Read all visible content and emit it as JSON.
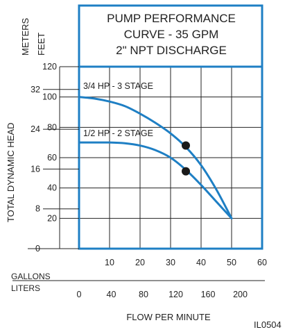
{
  "chart_data": {
    "type": "line",
    "title_lines": [
      "PUMP PERFORMANCE",
      "CURVE - 35 GPM",
      "2\" NPT DISCHARGE"
    ],
    "xlabel": "FLOW PER MINUTE",
    "x_gallons_label": "GALLONS",
    "x_liters_label": "LITERS",
    "x_gallons_ticks": [
      10,
      20,
      30,
      40,
      50,
      60
    ],
    "x_liters_ticks": [
      0,
      40,
      80,
      120,
      160,
      200
    ],
    "xlim_gallons": [
      0,
      60
    ],
    "ylabel_head": "TOTAL DYNAMIC HEAD",
    "ylabel_meters": "METERS",
    "ylabel_feet": "FEET",
    "y_feet_ticks": [
      20,
      40,
      60,
      80,
      100,
      120
    ],
    "y_meters_ticks": [
      0,
      8,
      16,
      24,
      32
    ],
    "ylim_feet": [
      0,
      120
    ],
    "series": [
      {
        "name": "3/4 HP - 3 STAGE",
        "x": [
          0,
          5,
          10,
          15,
          20,
          25,
          30,
          35,
          40,
          45,
          50
        ],
        "y": [
          100,
          99,
          97,
          94,
          89,
          83,
          76,
          67,
          55,
          39,
          20
        ],
        "marker": {
          "x": 35,
          "y": 68
        }
      },
      {
        "name": "1/2 HP - 2 STAGE",
        "x": [
          0,
          5,
          10,
          15,
          20,
          25,
          30,
          35,
          40,
          45,
          50
        ],
        "y": [
          70,
          70,
          70,
          69.5,
          68,
          65,
          60,
          52,
          42,
          31,
          20
        ],
        "marker": {
          "x": 35,
          "y": 51
        }
      }
    ],
    "curve_color": "#1e7fc4",
    "frame_color": "#1e7fc4",
    "marker_color": "#1a1a1a",
    "grid": true,
    "code": "IL0504"
  }
}
